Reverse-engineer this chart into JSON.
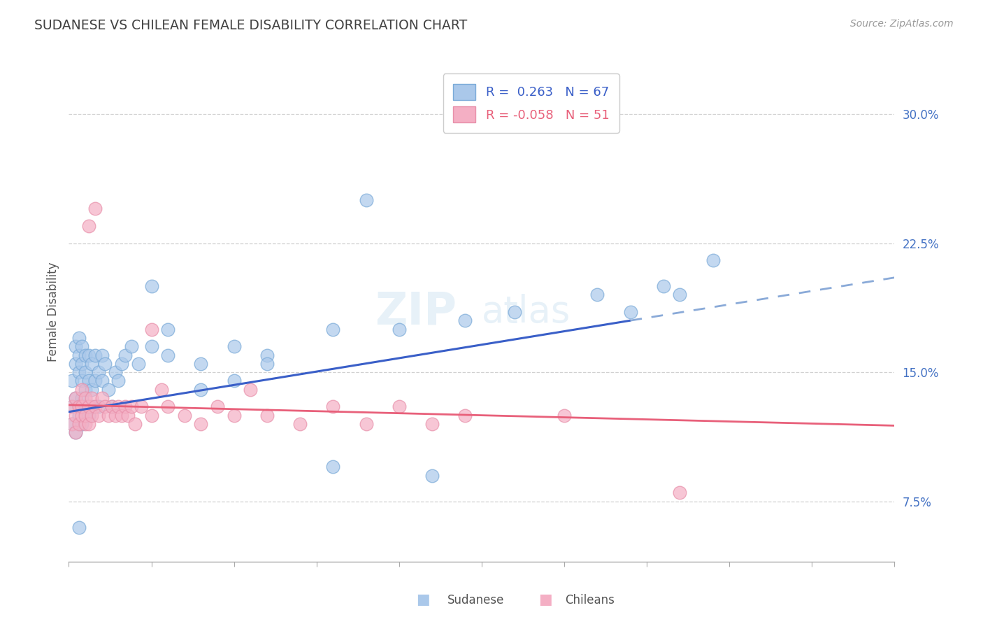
{
  "title": "SUDANESE VS CHILEAN FEMALE DISABILITY CORRELATION CHART",
  "source": "Source: ZipAtlas.com",
  "ylabel": "Female Disability",
  "yticks": [
    0.075,
    0.15,
    0.225,
    0.3
  ],
  "ytick_labels": [
    "7.5%",
    "15.0%",
    "22.5%",
    "30.0%"
  ],
  "xmin": 0.0,
  "xmax": 0.25,
  "ymin": 0.04,
  "ymax": 0.33,
  "blue_color": "#aac8ea",
  "pink_color": "#f4afc4",
  "blue_line_color": "#3a5fc8",
  "pink_line_color": "#e8607a",
  "blue_line_dash_color": "#8aaad8",
  "axis_label_color": "#4472c4",
  "title_color": "#404040",
  "r_blue": 0.263,
  "r_pink": -0.058,
  "n_blue": 67,
  "n_pink": 51,
  "blue_line_solid_end": 0.17,
  "blue_line_start_y": 0.127,
  "blue_line_end_y": 0.205,
  "pink_line_start_y": 0.131,
  "pink_line_end_y": 0.119,
  "sudanese_x": [
    0.001,
    0.001,
    0.001,
    0.002,
    0.002,
    0.002,
    0.002,
    0.003,
    0.003,
    0.003,
    0.003,
    0.003,
    0.004,
    0.004,
    0.004,
    0.004,
    0.004,
    0.004,
    0.005,
    0.005,
    0.005,
    0.005,
    0.005,
    0.006,
    0.006,
    0.006,
    0.007,
    0.007,
    0.007,
    0.008,
    0.008,
    0.009,
    0.009,
    0.01,
    0.01,
    0.011,
    0.012,
    0.013,
    0.014,
    0.015,
    0.016,
    0.017,
    0.019,
    0.021,
    0.025,
    0.03,
    0.04,
    0.05,
    0.06,
    0.08,
    0.1,
    0.12,
    0.135,
    0.16,
    0.17,
    0.18,
    0.185,
    0.195,
    0.04,
    0.06,
    0.09,
    0.025,
    0.03,
    0.05,
    0.08,
    0.11,
    0.003
  ],
  "sudanese_y": [
    0.13,
    0.145,
    0.12,
    0.135,
    0.165,
    0.155,
    0.115,
    0.13,
    0.15,
    0.16,
    0.125,
    0.17,
    0.135,
    0.155,
    0.145,
    0.12,
    0.13,
    0.165,
    0.125,
    0.14,
    0.16,
    0.15,
    0.13,
    0.145,
    0.125,
    0.16,
    0.14,
    0.155,
    0.13,
    0.145,
    0.16,
    0.15,
    0.13,
    0.145,
    0.16,
    0.155,
    0.14,
    0.13,
    0.15,
    0.145,
    0.155,
    0.16,
    0.165,
    0.155,
    0.165,
    0.16,
    0.155,
    0.165,
    0.16,
    0.175,
    0.175,
    0.18,
    0.185,
    0.195,
    0.185,
    0.2,
    0.195,
    0.215,
    0.14,
    0.155,
    0.25,
    0.2,
    0.175,
    0.145,
    0.095,
    0.09,
    0.06
  ],
  "chilean_x": [
    0.001,
    0.001,
    0.002,
    0.002,
    0.002,
    0.003,
    0.003,
    0.004,
    0.004,
    0.004,
    0.005,
    0.005,
    0.005,
    0.006,
    0.006,
    0.007,
    0.007,
    0.008,
    0.009,
    0.01,
    0.011,
    0.012,
    0.013,
    0.014,
    0.015,
    0.016,
    0.017,
    0.018,
    0.019,
    0.02,
    0.022,
    0.025,
    0.028,
    0.03,
    0.035,
    0.04,
    0.045,
    0.05,
    0.055,
    0.06,
    0.07,
    0.08,
    0.09,
    0.1,
    0.11,
    0.12,
    0.006,
    0.008,
    0.025,
    0.15,
    0.185
  ],
  "chilean_y": [
    0.13,
    0.12,
    0.135,
    0.125,
    0.115,
    0.13,
    0.12,
    0.14,
    0.125,
    0.13,
    0.135,
    0.12,
    0.125,
    0.13,
    0.12,
    0.135,
    0.125,
    0.13,
    0.125,
    0.135,
    0.13,
    0.125,
    0.13,
    0.125,
    0.13,
    0.125,
    0.13,
    0.125,
    0.13,
    0.12,
    0.13,
    0.125,
    0.14,
    0.13,
    0.125,
    0.12,
    0.13,
    0.125,
    0.14,
    0.125,
    0.12,
    0.13,
    0.12,
    0.13,
    0.12,
    0.125,
    0.235,
    0.245,
    0.175,
    0.125,
    0.08
  ],
  "watermark_zip": "ZIP",
  "watermark_atlas": "atlas",
  "legend_label_blue": "R =  0.263   N = 67",
  "legend_label_pink": "R = -0.058   N = 51",
  "bottom_legend_sudanese": "Sudanese",
  "bottom_legend_chileans": "Chileans"
}
